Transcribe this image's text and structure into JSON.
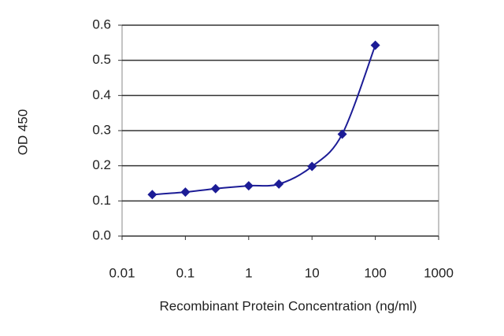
{
  "chart_data": {
    "type": "line",
    "xlabel": "Recombinant Protein Concentration (ng/ml)",
    "ylabel": "OD 450",
    "x": [
      0.03,
      0.1,
      0.3,
      1,
      3,
      10,
      30,
      100
    ],
    "series": [
      {
        "name": "OD 450",
        "color": "#1c1c96",
        "values": [
          0.118,
          0.125,
          0.135,
          0.143,
          0.148,
          0.198,
          0.29,
          0.543
        ]
      }
    ],
    "xlog": true,
    "xlim": [
      0.01,
      1000
    ],
    "xticks": [
      0.01,
      0.1,
      1,
      10,
      100,
      1000
    ],
    "ylim": [
      0,
      0.6
    ],
    "yticks": [
      {
        "value": 0,
        "label": "0.0"
      },
      0.1,
      0.2,
      0.3,
      0.4,
      0.5,
      0.6
    ],
    "grid": true
  }
}
